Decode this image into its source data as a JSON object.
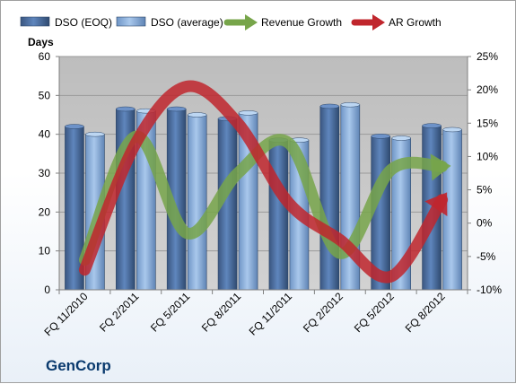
{
  "chart_data": {
    "type": "bar",
    "categories": [
      "FQ 11/2010",
      "FQ 2/2011",
      "FQ 5/2011",
      "FQ 8/2011",
      "FQ 11/2011",
      "FQ 2/2012",
      "FQ 5/2012",
      "FQ 8/2012"
    ],
    "series": [
      {
        "name": "DSO (EOQ)",
        "kind": "bar",
        "axis": "left",
        "color": "#4a6fa5",
        "values": [
          42,
          46.5,
          46.5,
          44,
          38.5,
          47.2,
          39.5,
          42.2
        ]
      },
      {
        "name": "DSO (average)",
        "kind": "bar",
        "axis": "left",
        "color": "#8fb3de",
        "values": [
          40,
          46,
          45,
          45.5,
          38.5,
          47.6,
          39,
          41.2
        ]
      },
      {
        "name": "Revenue Growth",
        "kind": "arrow-line",
        "axis": "right",
        "color": "#77a54a",
        "values": [
          -0.055,
          0.13,
          -0.015,
          0.075,
          0.12,
          -0.045,
          0.08,
          0.085
        ]
      },
      {
        "name": "AR Growth",
        "kind": "arrow-line",
        "axis": "right",
        "color": "#c0262d",
        "values": [
          -0.07,
          0.12,
          0.205,
          0.15,
          0.03,
          -0.025,
          -0.08,
          0.035
        ]
      }
    ],
    "ylabel": "Days",
    "ylim": [
      0,
      60
    ],
    "yticks": [
      0,
      10,
      20,
      30,
      40,
      50,
      60
    ],
    "y2lim": [
      -0.1,
      0.25
    ],
    "y2ticks": [
      "-10%",
      "-5%",
      "0%",
      "5%",
      "10%",
      "15%",
      "20%",
      "25%"
    ],
    "legend_position": "top",
    "grid": true,
    "plot_background": "#c0c0c0"
  },
  "brand": "GenCorp"
}
